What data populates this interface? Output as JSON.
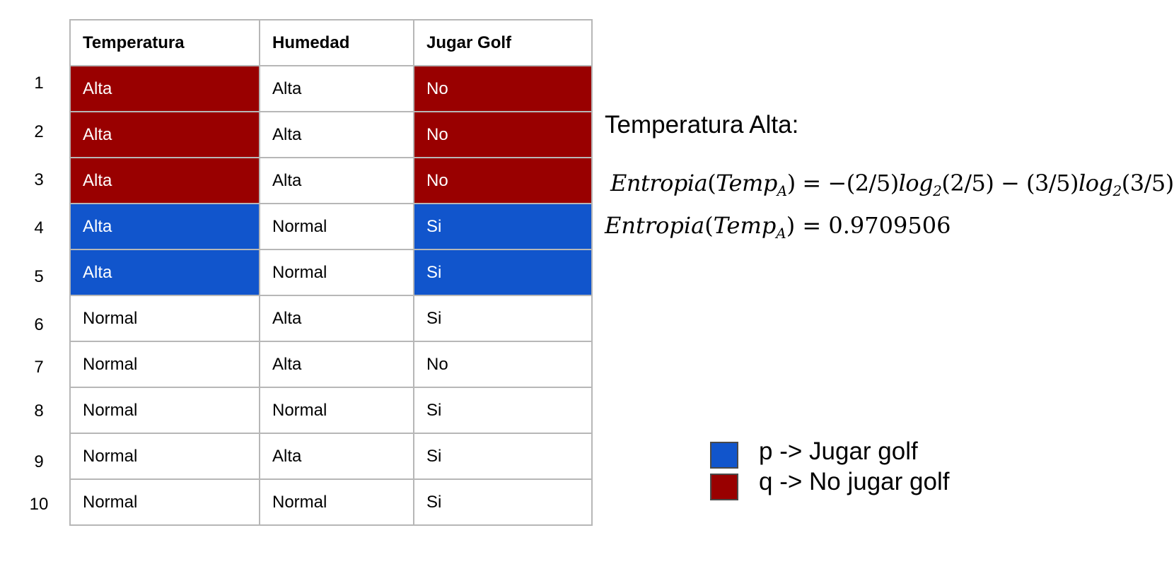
{
  "table": {
    "headers": [
      "Temperatura",
      "Humedad",
      "Jugar Golf"
    ],
    "row_numbers": [
      "1",
      "2",
      "3",
      "4",
      "5",
      "6",
      "7",
      "8",
      "9",
      "10"
    ],
    "rows": [
      [
        "Alta",
        "Alta",
        "No"
      ],
      [
        "Alta",
        "Alta",
        "No"
      ],
      [
        "Alta",
        "Alta",
        "No"
      ],
      [
        "Alta",
        "Normal",
        "Si"
      ],
      [
        "Alta",
        "Normal",
        "Si"
      ],
      [
        "Normal",
        "Alta",
        "Si"
      ],
      [
        "Normal",
        "Alta",
        "No"
      ],
      [
        "Normal",
        "Normal",
        "Si"
      ],
      [
        "Normal",
        "Alta",
        "Si"
      ],
      [
        "Normal",
        "Normal",
        "Si"
      ]
    ],
    "highlights": [
      "q",
      "q",
      "q",
      "p",
      "p",
      "",
      "",
      "",
      "",
      ""
    ]
  },
  "section_title": "Temperatura Alta:",
  "formula1": {
    "fn": "Entropia",
    "arg": "Temp",
    "sub": "A",
    "rhs_a": "= −(2/5)",
    "log": "log",
    "log_base": "2",
    "rhs_b": "(2/5) − (3/5)",
    "rhs_c": "(3/5)"
  },
  "formula2": {
    "fn": "Entropia",
    "arg": "Temp",
    "sub": "A",
    "rhs": "= 0.9709506"
  },
  "legend": [
    {
      "label": "p -> Jugar golf",
      "color": "#1155cc"
    },
    {
      "label": "q -> No jugar golf",
      "color": "#990000"
    }
  ]
}
